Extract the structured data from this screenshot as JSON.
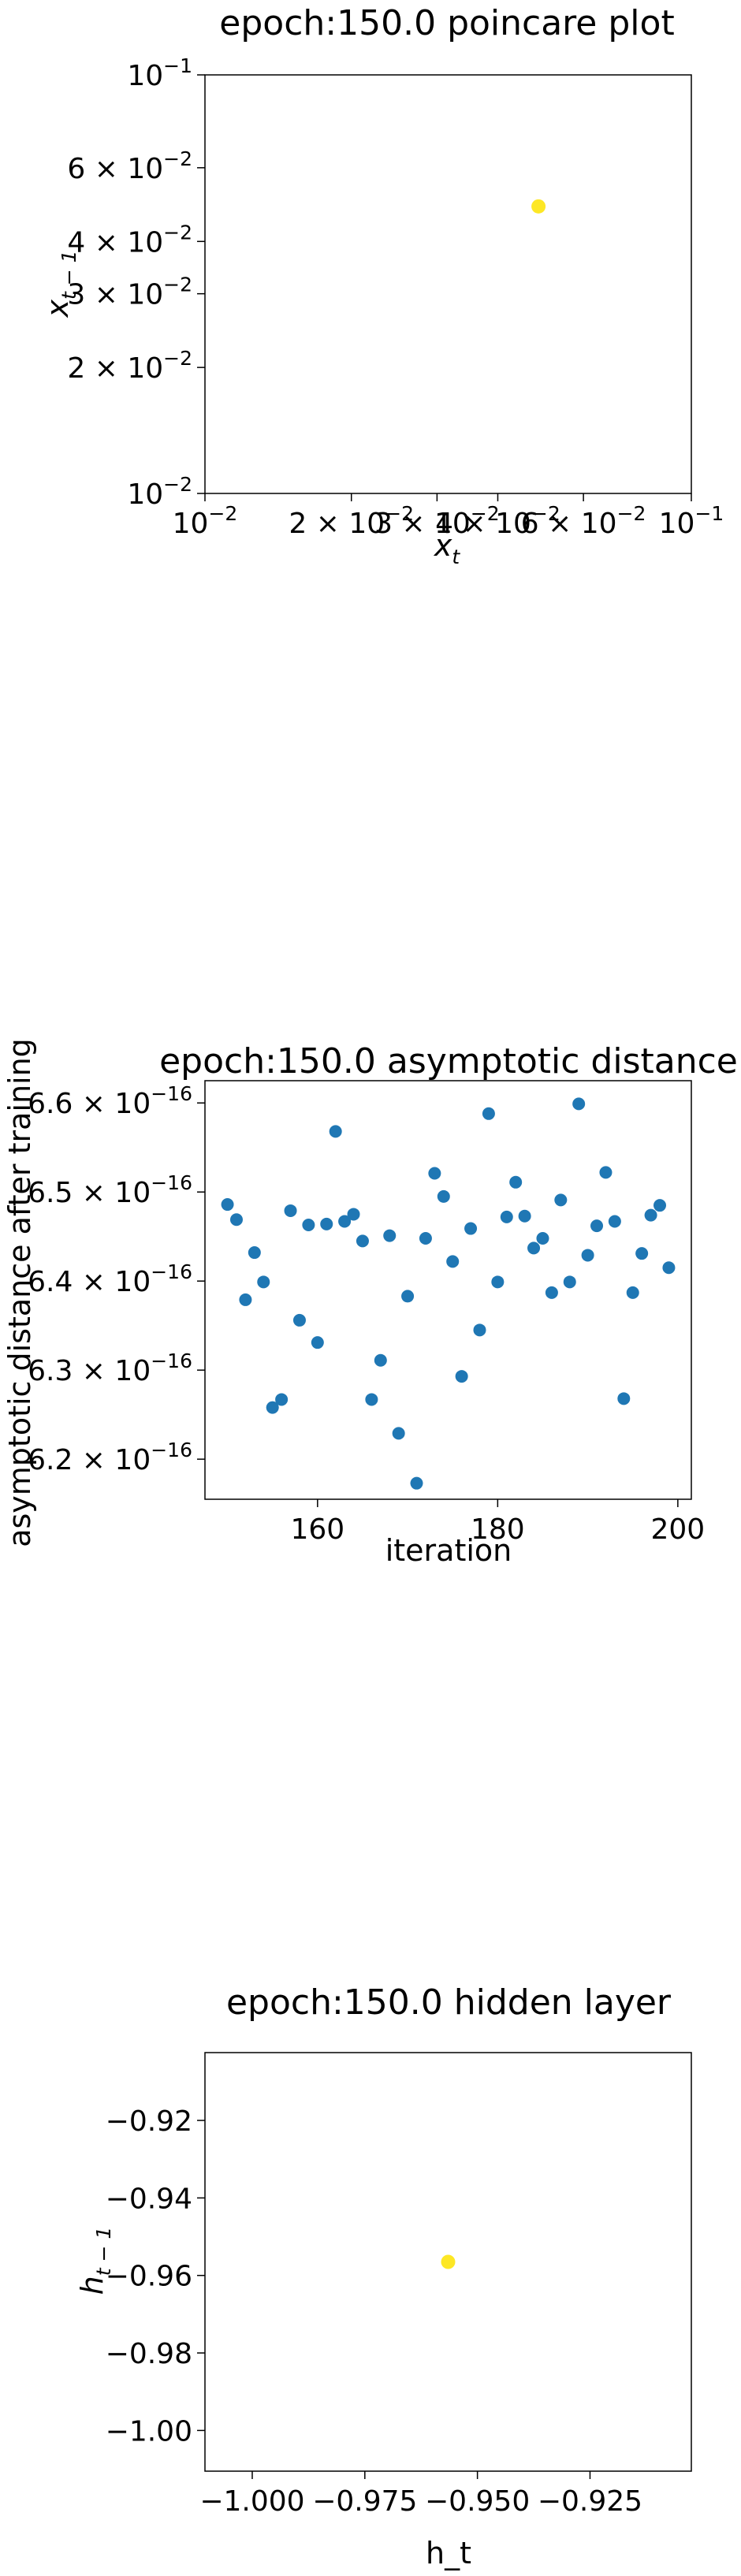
{
  "colors": {
    "point_yellow": "#fde725",
    "point_blue": "#1f77b4",
    "axis": "#000000"
  },
  "chart_data": [
    {
      "type": "scatter",
      "title": "epoch:150.0 poincare plot",
      "xlabel": "x_t",
      "ylabel": "x_{t-1}",
      "xscale": "log",
      "yscale": "log",
      "xlim": [
        0.01,
        0.1
      ],
      "ylim": [
        0.01,
        0.1
      ],
      "x_ticks": [
        {
          "value": 0.01,
          "mant": "",
          "exp": "−2"
        },
        {
          "value": 0.02,
          "mant": "2 × ",
          "exp": "−2"
        },
        {
          "value": 0.03,
          "mant": "3 × ",
          "exp": "−2"
        },
        {
          "value": 0.04,
          "mant": "4 × ",
          "exp": "−2"
        },
        {
          "value": 0.06,
          "mant": "6 × ",
          "exp": "−2"
        },
        {
          "value": 0.1,
          "mant": "",
          "exp": "−1"
        }
      ],
      "y_ticks": [
        {
          "value": 0.01,
          "mant": "",
          "exp": "−2"
        },
        {
          "value": 0.02,
          "mant": "2 × ",
          "exp": "−2"
        },
        {
          "value": 0.03,
          "mant": "3 × ",
          "exp": "−2"
        },
        {
          "value": 0.04,
          "mant": "4 × ",
          "exp": "−2"
        },
        {
          "value": 0.06,
          "mant": "6 × ",
          "exp": "−2"
        },
        {
          "value": 0.1,
          "mant": "",
          "exp": "−1"
        }
      ],
      "points": [
        {
          "x": 0.0485,
          "y": 0.0485
        }
      ]
    },
    {
      "type": "scatter",
      "title": "epoch:150.0 asymptotic distance",
      "xlabel": "iteration",
      "ylabel": "asymptotic distance after training",
      "xlim": [
        147.5,
        201.5
      ],
      "ylim": [
        6.155e-16,
        6.625e-16
      ],
      "x_ticks": [
        {
          "value": 160,
          "label": "160"
        },
        {
          "value": 180,
          "label": "180"
        },
        {
          "value": 200,
          "label": "200"
        }
      ],
      "y_ticks": [
        {
          "value": 6.2e-16,
          "mant": "6.2 × ",
          "exp": "−16"
        },
        {
          "value": 6.3e-16,
          "mant": "6.3 × ",
          "exp": "−16"
        },
        {
          "value": 6.4e-16,
          "mant": "6.4 × ",
          "exp": "−16"
        },
        {
          "value": 6.5e-16,
          "mant": "6.5 × ",
          "exp": "−16"
        },
        {
          "value": 6.6e-16,
          "mant": "6.6 × ",
          "exp": "−16"
        }
      ],
      "x": [
        150,
        151,
        152,
        153,
        154,
        155,
        156,
        157,
        158,
        159,
        160,
        161,
        162,
        163,
        164,
        165,
        166,
        167,
        168,
        169,
        170,
        171,
        172,
        173,
        174,
        175,
        176,
        177,
        178,
        179,
        180,
        181,
        182,
        183,
        184,
        185,
        186,
        187,
        188,
        189,
        190,
        191,
        192,
        193,
        194,
        195,
        196,
        197,
        198,
        199
      ],
      "y": [
        6.486e-16,
        6.469e-16,
        6.379e-16,
        6.432e-16,
        6.399e-16,
        6.258e-16,
        6.267e-16,
        6.479e-16,
        6.356e-16,
        6.463e-16,
        6.331e-16,
        6.464e-16,
        6.568e-16,
        6.467e-16,
        6.475e-16,
        6.445e-16,
        6.267e-16,
        6.311e-16,
        6.451e-16,
        6.229e-16,
        6.383e-16,
        6.173e-16,
        6.448e-16,
        6.521e-16,
        6.495e-16,
        6.422e-16,
        6.293e-16,
        6.459e-16,
        6.345e-16,
        6.588e-16,
        6.399e-16,
        6.472e-16,
        6.511e-16,
        6.473e-16,
        6.437e-16,
        6.448e-16,
        6.387e-16,
        6.491e-16,
        6.399e-16,
        6.599e-16,
        6.429e-16,
        6.462e-16,
        6.522e-16,
        6.467e-16,
        6.268e-16,
        6.387e-16,
        6.431e-16,
        6.474e-16,
        6.485e-16,
        6.415e-16
      ]
    },
    {
      "type": "scatter",
      "title": "epoch:150.0 hidden layer",
      "xlabel": "h_t",
      "ylabel": "h_{t-1}",
      "xlim": [
        -1.0105,
        -0.9025
      ],
      "ylim": [
        -1.0105,
        -0.9025
      ],
      "x_ticks": [
        {
          "value": -1.0,
          "label": "−1.000"
        },
        {
          "value": -0.975,
          "label": "−0.975"
        },
        {
          "value": -0.95,
          "label": "−0.950"
        },
        {
          "value": -0.925,
          "label": "−0.925"
        }
      ],
      "y_ticks": [
        {
          "value": -0.92,
          "label": "−0.92"
        },
        {
          "value": -0.94,
          "label": "−0.94"
        },
        {
          "value": -0.96,
          "label": "−0.96"
        },
        {
          "value": -0.98,
          "label": "−0.98"
        },
        {
          "value": -1.0,
          "label": "−1.00"
        }
      ],
      "points": [
        {
          "x": -0.9565,
          "y": -0.9565
        }
      ]
    }
  ]
}
